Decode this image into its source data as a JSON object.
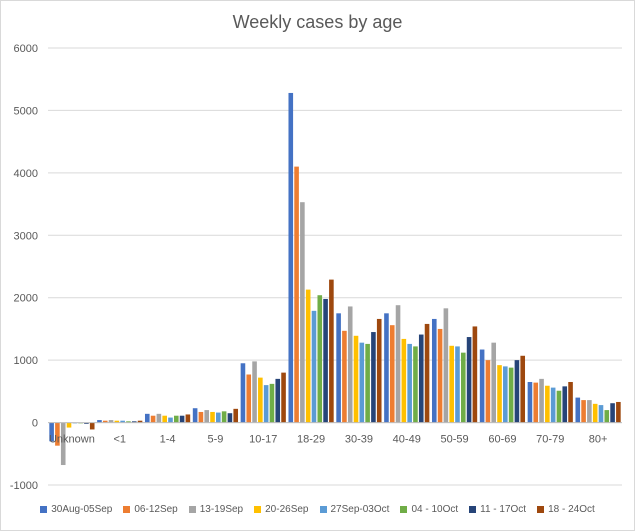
{
  "chart_data": {
    "type": "bar",
    "title": "Weekly cases by age",
    "xlabel": "",
    "ylabel": "",
    "ylim": [
      -1000,
      6000
    ],
    "yticks": [
      -1000,
      0,
      1000,
      2000,
      3000,
      4000,
      5000,
      6000
    ],
    "grid": true,
    "legend_position": "bottom",
    "categories": [
      "Unknown",
      "<1",
      "1-4",
      "5-9",
      "10-17",
      "18-29",
      "30-39",
      "40-49",
      "50-59",
      "60-69",
      "70-79",
      "80+"
    ],
    "series": [
      {
        "name": "30Aug-05Sep",
        "color": "#4472c4",
        "values": [
          -300,
          40,
          140,
          230,
          950,
          5280,
          1750,
          1750,
          1660,
          1170,
          650,
          400
        ]
      },
      {
        "name": "06-12Sep",
        "color": "#ed7d31",
        "values": [
          -370,
          30,
          110,
          170,
          770,
          4100,
          1470,
          1560,
          1500,
          1000,
          640,
          360
        ]
      },
      {
        "name": "13-19Sep",
        "color": "#a5a5a5",
        "values": [
          -680,
          40,
          140,
          200,
          980,
          3530,
          1860,
          1880,
          1830,
          1280,
          700,
          360
        ]
      },
      {
        "name": "20-26Sep",
        "color": "#ffc000",
        "values": [
          -80,
          30,
          110,
          170,
          720,
          2130,
          1390,
          1340,
          1230,
          920,
          590,
          300
        ]
      },
      {
        "name": "27Sep-03Oct",
        "color": "#5b9bd5",
        "values": [
          0,
          30,
          80,
          160,
          600,
          1790,
          1280,
          1260,
          1220,
          900,
          560,
          280
        ]
      },
      {
        "name": "04 - 10Oct",
        "color": "#70ad47",
        "values": [
          0,
          20,
          110,
          180,
          620,
          2040,
          1260,
          1220,
          1120,
          880,
          510,
          200
        ]
      },
      {
        "name": "11 - 17Oct",
        "color": "#264478",
        "values": [
          -20,
          20,
          110,
          150,
          700,
          1980,
          1450,
          1410,
          1370,
          1000,
          580,
          310
        ]
      },
      {
        "name": "18 - 24Oct",
        "color": "#9e480e",
        "values": [
          -110,
          30,
          130,
          220,
          800,
          2290,
          1660,
          1580,
          1540,
          1070,
          650,
          330
        ]
      }
    ]
  }
}
